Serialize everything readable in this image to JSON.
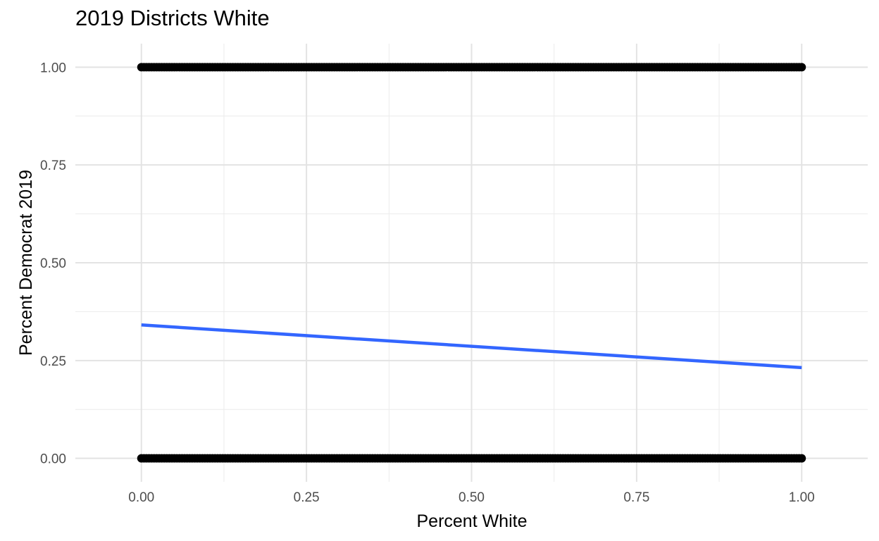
{
  "chart_data": {
    "type": "scatter",
    "title": "2019 Districts White",
    "xlabel": "Percent White",
    "ylabel": "Percent Democrat 2019",
    "xlim": [
      -0.1,
      1.1
    ],
    "ylim": [
      -0.06,
      1.06
    ],
    "x_ticks": [
      0.0,
      0.25,
      0.5,
      0.75,
      1.0
    ],
    "x_tick_labels": [
      "0.00",
      "0.25",
      "0.50",
      "0.75",
      "1.00"
    ],
    "y_ticks": [
      0.0,
      0.25,
      0.5,
      0.75,
      1.0
    ],
    "y_tick_labels": [
      "0.00",
      "0.25",
      "0.50",
      "0.75",
      "1.00"
    ],
    "grid": true,
    "legend": "none",
    "series": [
      {
        "kind": "points",
        "color": "#000000",
        "note_outcome_values": [
          0,
          1
        ],
        "x_range": [
          0.0,
          1.0
        ],
        "y_values": [
          0,
          1
        ]
      },
      {
        "kind": "linear_fit",
        "color": "#3366ff",
        "x": [
          0.0,
          1.0
        ],
        "y": [
          0.341,
          0.232
        ]
      }
    ]
  }
}
